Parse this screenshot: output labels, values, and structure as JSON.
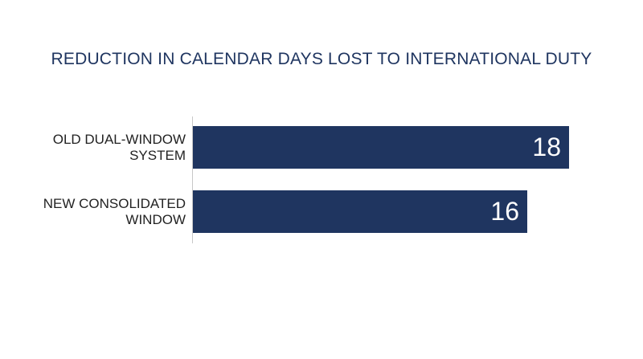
{
  "chart_data": {
    "type": "bar",
    "orientation": "horizontal",
    "title": "REDUCTION IN CALENDAR DAYS LOST TO INTERNATIONAL DUTY",
    "categories": [
      "OLD DUAL-WINDOW SYSTEM",
      "NEW CONSOLIDATED WINDOW"
    ],
    "values": [
      18,
      16
    ],
    "color": "#1f3560"
  }
}
